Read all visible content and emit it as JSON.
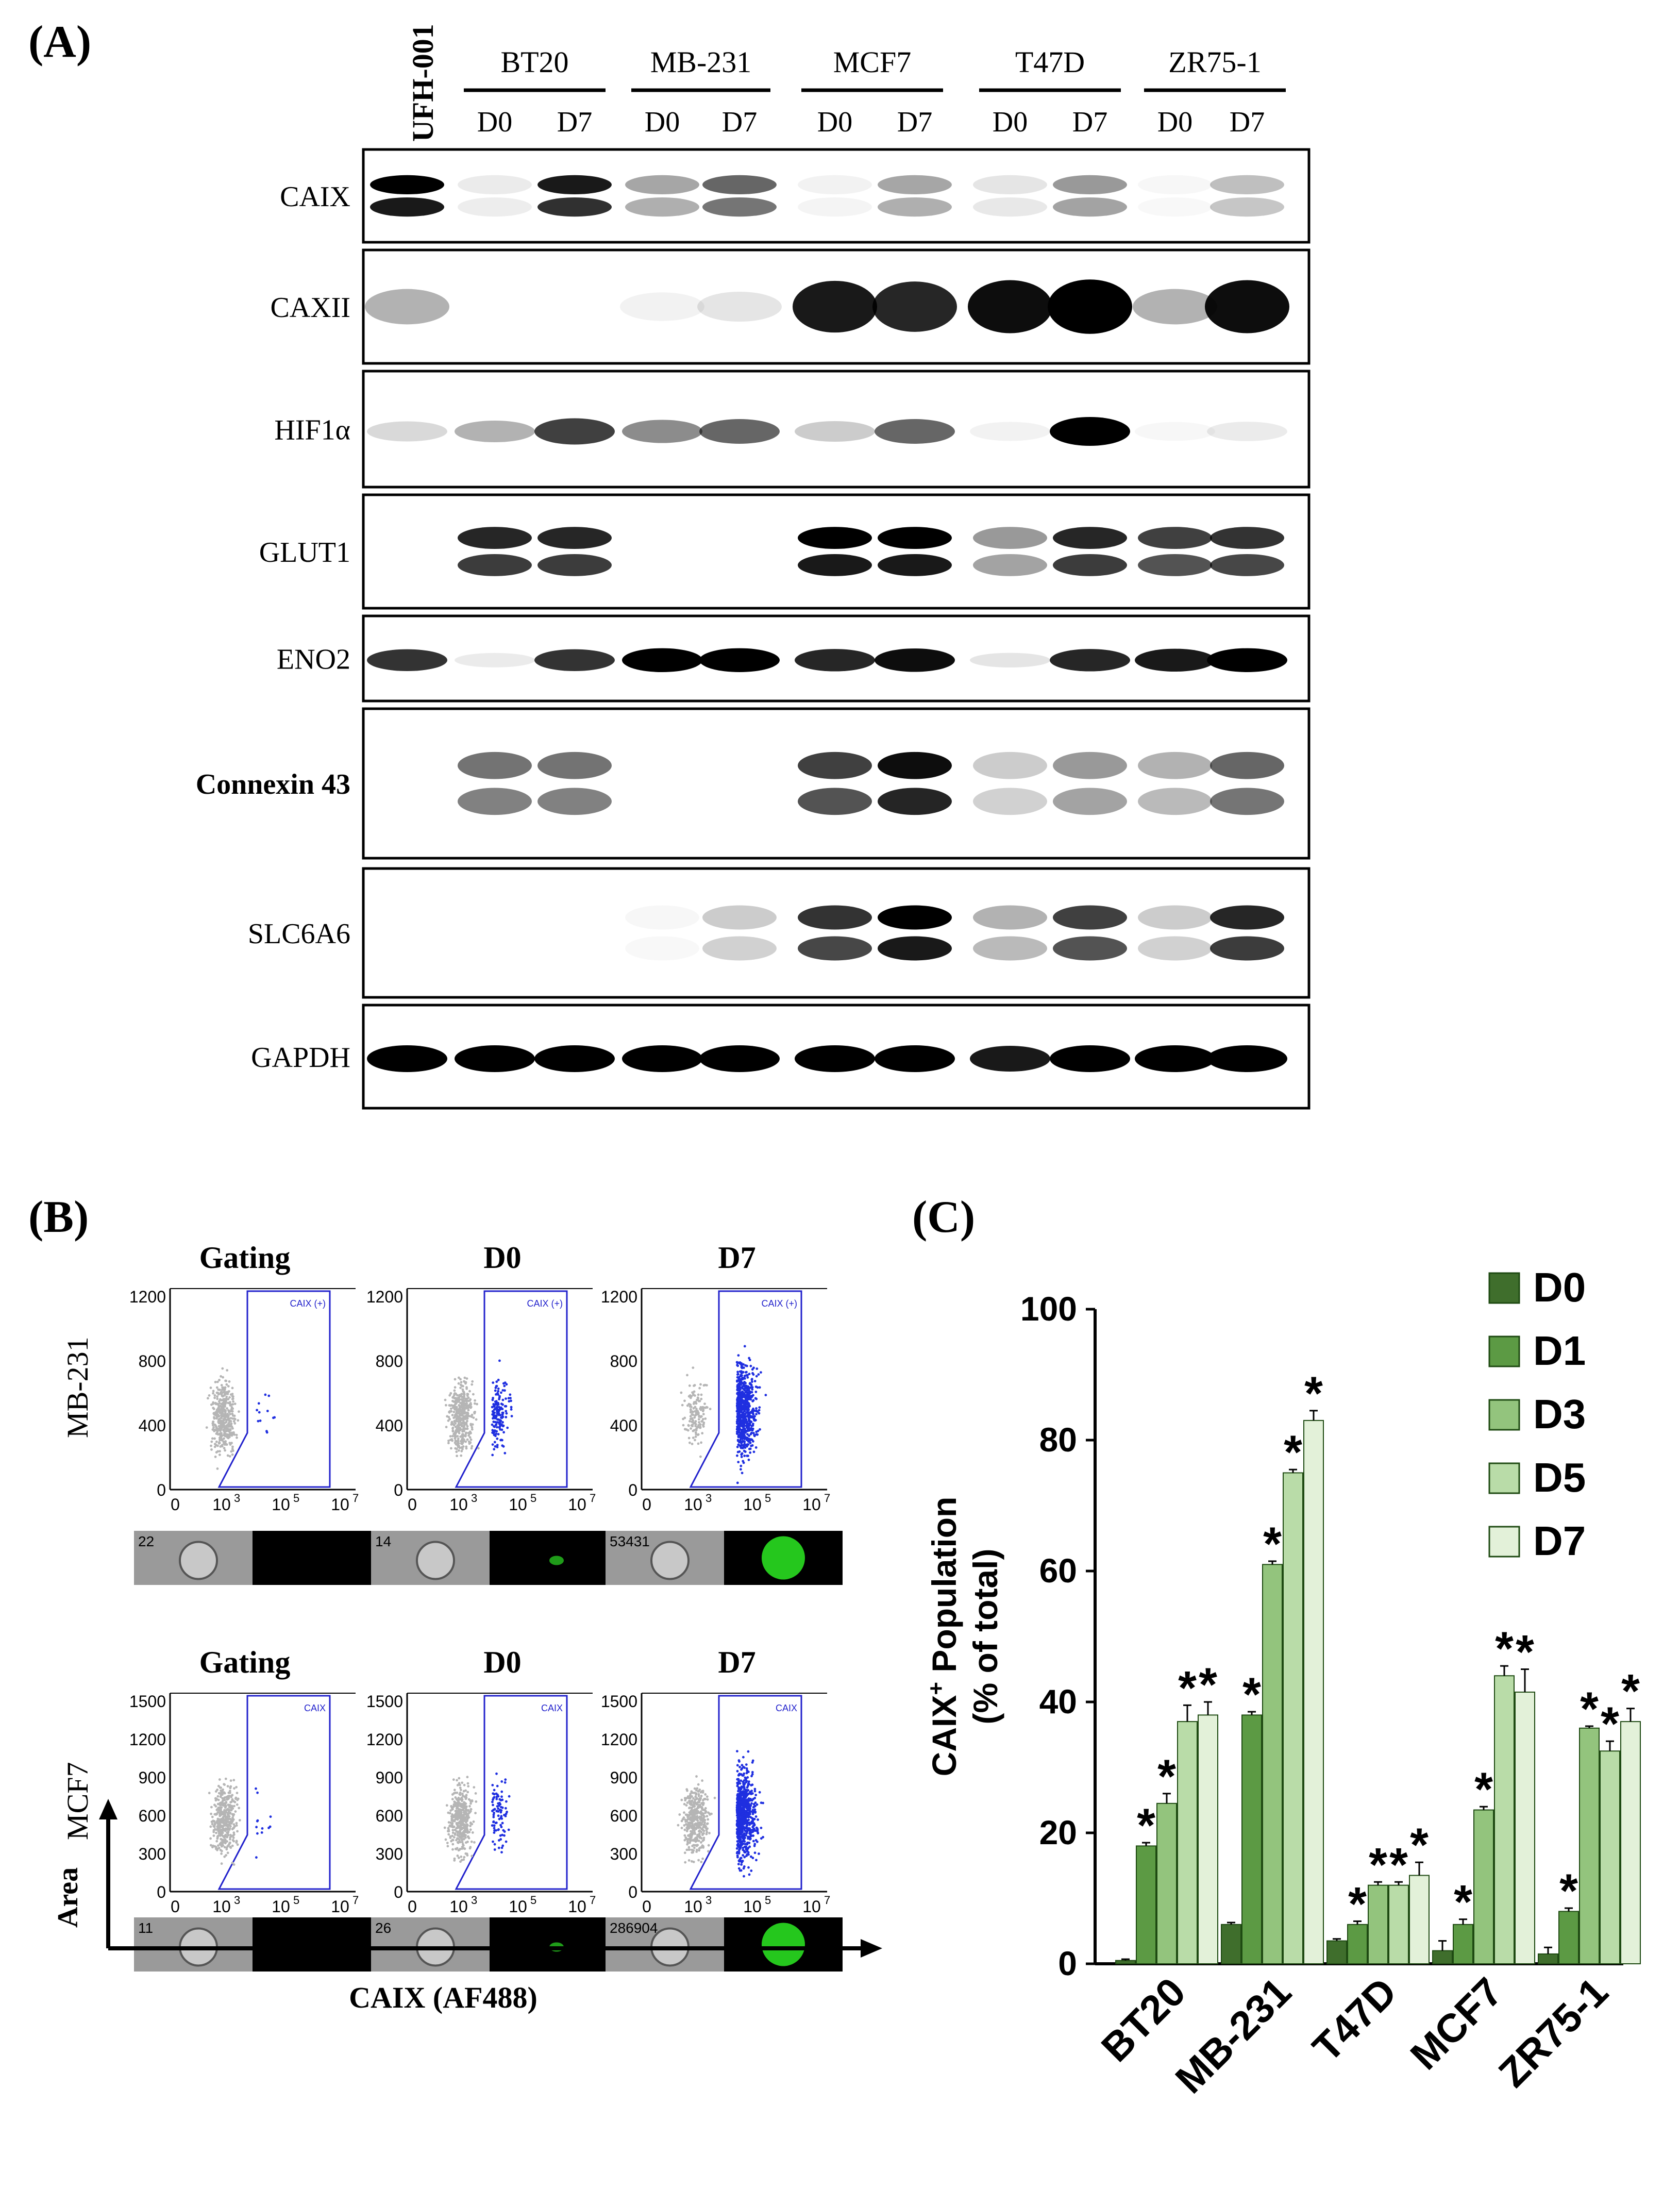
{
  "panel_labels": {
    "a": "(A)",
    "b": "(B)",
    "c": "(C)"
  },
  "western_blot": {
    "first_lane": "UFH-001",
    "cell_lines": [
      "BT20",
      "MB-231",
      "MCF7",
      "T47D",
      "ZR75-1"
    ],
    "day_labels": [
      "D0",
      "D7"
    ],
    "proteins": [
      "CAIX",
      "CAXII",
      "HIF1α",
      "GLUT1",
      "ENO2",
      "Connexin 43",
      "SLC6A6",
      "GAPDH"
    ]
  },
  "flow_cytometry": {
    "column_titles": [
      "Gating",
      "D0",
      "D7"
    ],
    "rows": [
      {
        "cell_line": "MB-231",
        "y_ticks": [
          "1200",
          "800",
          "400",
          "0"
        ],
        "gate_label": "CAIX (+)",
        "image_ids": [
          "22",
          "14",
          "53431"
        ]
      },
      {
        "cell_line": "MCF7",
        "y_ticks": [
          "1500",
          "1200",
          "900",
          "600",
          "300",
          "0"
        ],
        "gate_label": "CAIX",
        "image_ids": [
          "11",
          "26",
          "286904"
        ]
      }
    ],
    "x_ticks": [
      "0",
      "10",
      "10",
      "10"
    ],
    "x_exponents": [
      "",
      "3",
      "5",
      "7"
    ],
    "axis_x_label": "CAIX (AF488)",
    "axis_y_label": "Area"
  },
  "chart_data": {
    "type": "bar",
    "categories": [
      "BT20",
      "MB-231",
      "T47D",
      "MCF7",
      "ZR75-1"
    ],
    "series": [
      {
        "name": "D0",
        "color": "#3f6e2c",
        "values": [
          0.5,
          6,
          3.5,
          2,
          1.5
        ],
        "errors": [
          0.2,
          0.3,
          0.3,
          1.5,
          1
        ],
        "significant": [
          false,
          false,
          false,
          false,
          false
        ]
      },
      {
        "name": "D1",
        "color": "#5c9a44",
        "values": [
          18,
          38,
          6,
          6,
          8
        ],
        "errors": [
          0.5,
          0.5,
          0.5,
          0.8,
          0.5
        ],
        "significant": [
          true,
          true,
          true,
          true,
          true
        ]
      },
      {
        "name": "D3",
        "color": "#93c47d",
        "values": [
          24.5,
          61,
          12,
          23.5,
          36
        ],
        "errors": [
          1.5,
          0.5,
          0.5,
          0.5,
          0.3
        ],
        "significant": [
          true,
          true,
          true,
          true,
          true
        ]
      },
      {
        "name": "D5",
        "color": "#b9dca8",
        "values": [
          37,
          75,
          12,
          44,
          32.5
        ],
        "errors": [
          2.5,
          0.5,
          0.5,
          1.5,
          1.5
        ],
        "significant": [
          true,
          true,
          true,
          true,
          true
        ]
      },
      {
        "name": "D7",
        "color": "#e3f1d9",
        "values": [
          38,
          83,
          13.5,
          41.5,
          37
        ],
        "errors": [
          2,
          1.5,
          2,
          3.5,
          2
        ],
        "significant": [
          true,
          true,
          true,
          true,
          true
        ]
      }
    ],
    "ylabel_line1": "CAIX",
    "ylabel_sup": "+",
    "ylabel_line2": " Population",
    "ylabel_sub": "(% of total)",
    "ylim": [
      0,
      100
    ],
    "yticks": [
      0,
      20,
      40,
      60,
      80,
      100
    ],
    "significance_marker": "*",
    "legend_position": "top-right"
  }
}
